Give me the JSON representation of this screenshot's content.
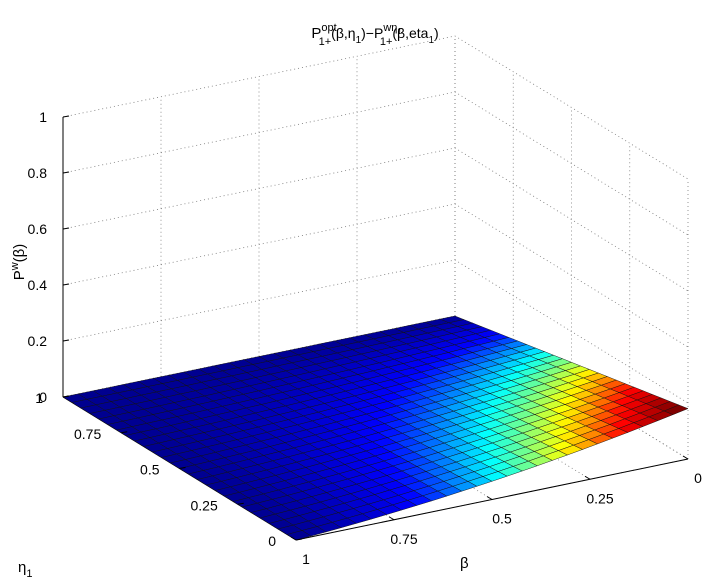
{
  "chart_data": {
    "type": "surface",
    "title_parts": {
      "main": "P",
      "sup1": "opt",
      "sub1": "1+",
      "mid": "(β,η",
      "sub_eta": "1",
      "mid_close": ")−P",
      "sup2": "wη",
      "sup2_sub": "1",
      "sub2": "1+",
      "tail": "(β,eta",
      "sub_eta2": "1",
      "end": ")"
    },
    "xlabel": "β",
    "ylabel_main": "η",
    "ylabel_sub": "1",
    "zlabel_main": "P",
    "zlabel_sup": "w",
    "zlabel_tail": "(β)",
    "x_axis": {
      "name": "beta",
      "lim": [
        0,
        1
      ],
      "ticks": [
        "0",
        "0.25",
        "0.5",
        "0.75",
        "1"
      ]
    },
    "y_axis": {
      "name": "eta1",
      "lim": [
        0,
        1
      ],
      "ticks": [
        "0",
        "0.25",
        "0.5",
        "0.75",
        "1"
      ]
    },
    "z_axis": {
      "lim": [
        0,
        1
      ],
      "ticks": [
        "0",
        "0.2",
        "0.4",
        "0.6",
        "0.8",
        "1"
      ]
    },
    "grid": true,
    "colormap": "jet",
    "colormap_stops": [
      "#00008f",
      "#0000ff",
      "#00ffff",
      "#ffff00",
      "#ff0000",
      "#800000"
    ],
    "color_limits": [
      0,
      0.17
    ],
    "surface_function": "z = 0.18 * (1 - beta) * (1 - eta1) - 0.10 * (1 - beta) * (1 - eta1) * beta",
    "surface_samples": {
      "beta": [
        0,
        0.5,
        1,
        0,
        0.5,
        1,
        0,
        0.5,
        1
      ],
      "eta1": [
        1,
        1,
        1,
        0.5,
        0.5,
        0.5,
        0,
        0,
        0
      ],
      "z": [
        0,
        0,
        0,
        0.09,
        0.035,
        0,
        0.18,
        0.065,
        0
      ]
    },
    "mesh_resolution": 26
  }
}
